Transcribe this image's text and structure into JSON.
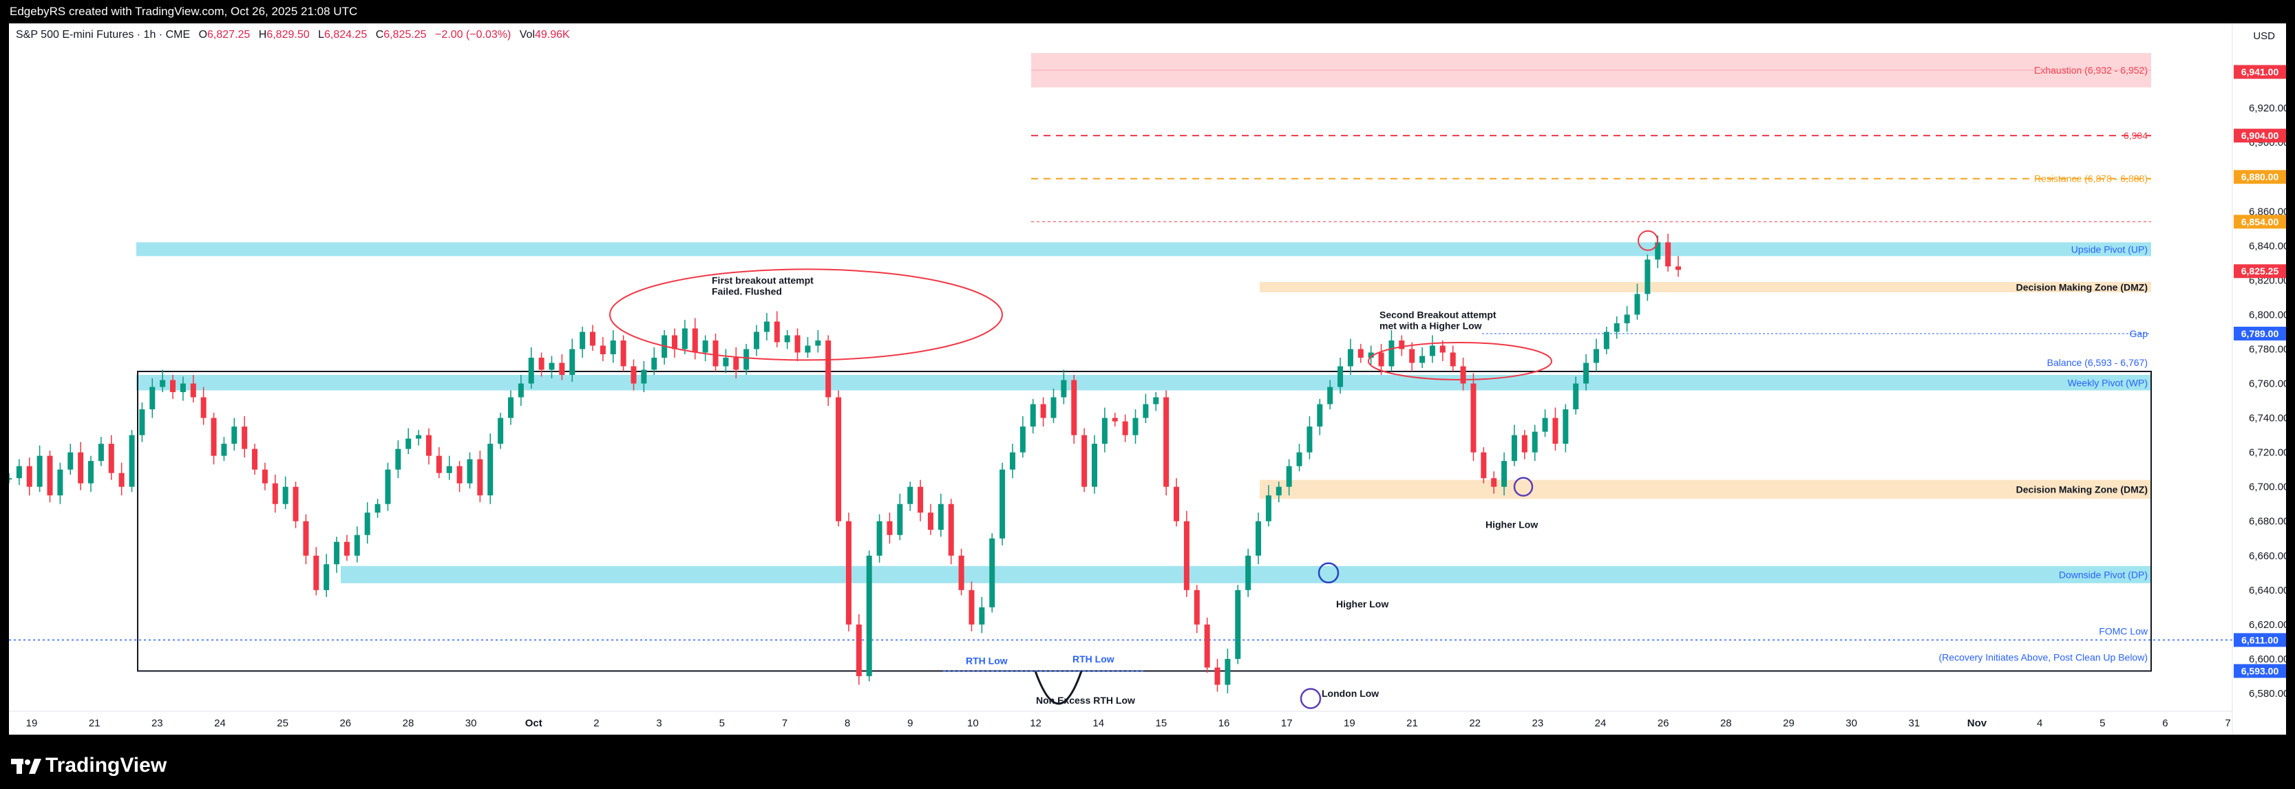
{
  "header": {
    "attribution": "EdgebyRS created with TradingView.com, Oct 26, 2025 21:08 UTC"
  },
  "legend": {
    "symbol": "S&P 500 E-mini Futures · 1h · CME",
    "open_label": "O",
    "open": "6,827.25",
    "high_label": "H",
    "high": "6,829.50",
    "low_label": "L",
    "low": "6,824.25",
    "close_label": "C",
    "close": "6,825.25",
    "change": "−2.00 (−0.03%)",
    "volume_label": "Vol",
    "volume": "49.96K"
  },
  "currency": "USD",
  "footer": {
    "brand": "TradingView"
  },
  "colors": {
    "bull": "#089981",
    "bear": "#f23645",
    "pivot": "#a0e4ef",
    "dmz": "#fde5c4",
    "exhaustion": "#fdd6da",
    "accent_blue": "#2962ff"
  },
  "chart_data": {
    "type": "line",
    "title": "",
    "ylim": [
      6572,
      6966
    ],
    "y_ticks": [
      6580,
      6600,
      6620,
      6640,
      6660,
      6680,
      6700,
      6720,
      6740,
      6760,
      6780,
      6800,
      6820,
      6840,
      6860,
      6880,
      6900,
      6920
    ],
    "x_ticks": [
      "19",
      "21",
      "23",
      "24",
      "25",
      "26",
      "28",
      "30",
      "Oct",
      "2",
      "3",
      "5",
      "7",
      "8",
      "9",
      "10",
      "12",
      "14",
      "15",
      "16",
      "17",
      "19",
      "21",
      "22",
      "23",
      "24",
      "26",
      "28",
      "29",
      "30",
      "31",
      "Nov",
      "4",
      "5",
      "6",
      "7"
    ],
    "price_badges": [
      {
        "label": "6,941.00",
        "value": 6941,
        "color": "#f23645"
      },
      {
        "label": "6,904.00",
        "value": 6904,
        "color": "#f23645"
      },
      {
        "label": "6,880.00",
        "value": 6880,
        "color": "#f7a21b"
      },
      {
        "label": "6,854.00",
        "value": 6854,
        "color": "#f7a21b"
      },
      {
        "label": "6,825.25",
        "value": 6825.25,
        "color": "#f23645"
      },
      {
        "label": "6,789.00",
        "value": 6789,
        "color": "#2962ff"
      },
      {
        "label": "6,611.00",
        "value": 6611,
        "color": "#2962ff"
      },
      {
        "label": "6,593.00",
        "value": 6593,
        "color": "#2962ff"
      }
    ],
    "zones": [
      {
        "label": "Exhaustion (6,932 - 6,952)",
        "low": 6932,
        "high": 6952,
        "kind": "exhaustion"
      },
      {
        "label": "Upside Pivot (UP)",
        "low": 6834,
        "high": 6842,
        "kind": "pivot"
      },
      {
        "label": "Decision Making Zone (DMZ)",
        "low": 6813,
        "high": 6819,
        "kind": "dmz"
      },
      {
        "label": "Weekly Pivot (WP)",
        "low": 6756,
        "high": 6765,
        "kind": "pivot"
      },
      {
        "label": "Decision Making Zone (DMZ)",
        "low": 6693,
        "high": 6704,
        "kind": "dmz"
      },
      {
        "label": "Downside Pivot (DP)",
        "low": 6644,
        "high": 6654,
        "kind": "pivot"
      }
    ],
    "levels": [
      {
        "label": "6,904",
        "value": 6904
      },
      {
        "label": "Resistance (6,878 - 6,888)",
        "value": 6879
      },
      {
        "label": "Gap",
        "value": 6789
      },
      {
        "label": "FOMC Low",
        "value": 6611
      }
    ],
    "balance_box": {
      "label": "Balance (6,593 - 6,767)",
      "low": 6593,
      "high": 6767
    },
    "recovery_note": "(Recovery Initiates Above, Post Clean Up Below)",
    "annotations": [
      {
        "text": "First breakout attempt",
        "line2": "Failed. Flushed"
      },
      {
        "text": "Second Breakout attempt",
        "line2": "met with a Higher Low"
      },
      {
        "text": "Higher Low"
      },
      {
        "text": "Higher Low"
      },
      {
        "text": "London Low"
      },
      {
        "text": "RTH Low"
      },
      {
        "text": "RTH Low"
      },
      {
        "text": "Non Excess RTH Low"
      }
    ],
    "series": [
      {
        "values": [
          6705,
          6712,
          6700,
          6718,
          6695,
          6710,
          6720,
          6702,
          6715,
          6725,
          6708,
          6700,
          6730,
          6745,
          6758,
          6762,
          6755,
          6760,
          6752,
          6740,
          6718,
          6725,
          6735,
          6722,
          6710,
          6702,
          6690,
          6700,
          6680,
          6660,
          6640,
          6655,
          6668,
          6660,
          6672,
          6685,
          6690,
          6710,
          6722,
          6728,
          6730,
          6718,
          6708,
          6712,
          6702,
          6716,
          6695,
          6725,
          6740,
          6752,
          6760,
          6775,
          6768,
          6772,
          6765,
          6780,
          6790,
          6782,
          6777,
          6785,
          6770,
          6760,
          6768,
          6775,
          6788,
          6780,
          6792,
          6778,
          6785,
          6770,
          6775,
          6768,
          6780,
          6790,
          6796,
          6784,
          6788,
          6778,
          6782,
          6785,
          6752,
          6680,
          6620,
          6590,
          6660,
          6680,
          6672,
          6690,
          6700,
          6685,
          6675,
          6690,
          6660,
          6640,
          6620,
          6630,
          6670,
          6710,
          6720,
          6735,
          6748,
          6740,
          6752,
          6762,
          6730,
          6700,
          6725,
          6740,
          6738,
          6730,
          6740,
          6748,
          6752,
          6700,
          6680,
          6640,
          6620,
          6595,
          6585,
          6600,
          6640,
          6660,
          6680,
          6695,
          6700,
          6712,
          6720,
          6735,
          6748,
          6758,
          6770,
          6780,
          6775,
          6778,
          6770,
          6785,
          6780,
          6772,
          6776,
          6782,
          6778,
          6770,
          6760,
          6720,
          6705,
          6700,
          6715,
          6730,
          6720,
          6732,
          6740,
          6725,
          6745,
          6760,
          6772,
          6780,
          6790,
          6795,
          6800,
          6812,
          6832,
          6842,
          6828,
          6826
        ]
      }
    ]
  }
}
